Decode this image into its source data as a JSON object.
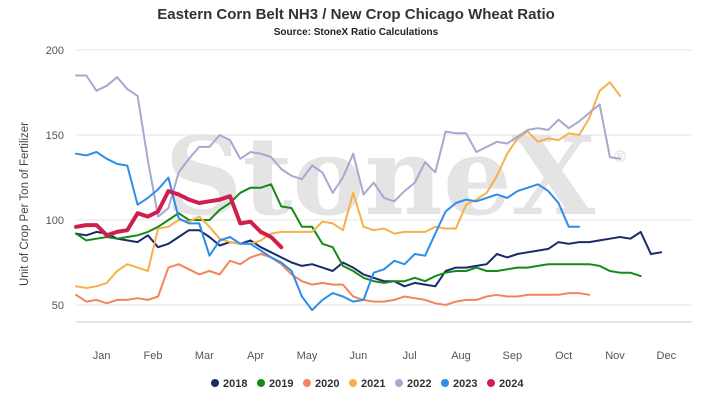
{
  "chart_data": {
    "type": "line",
    "title": "Eastern Corn Belt NH3 / New Crop Chicago Wheat Ratio",
    "subtitle": "Source: StoneX Ratio Calculations",
    "ylabel": "Unit of Crop Per Ton of Fertilizer",
    "xlabel": "",
    "ylim": [
      40,
      200
    ],
    "y_ticks": [
      50,
      100,
      150,
      200
    ],
    "xlim": [
      0,
      12
    ],
    "x_tick_labels": [
      "Jan",
      "Feb",
      "Mar",
      "Apr",
      "May",
      "Jun",
      "Jul",
      "Aug",
      "Sep",
      "Oct",
      "Nov",
      "Dec"
    ],
    "x_tick_positions": [
      0.5,
      1.5,
      2.5,
      3.5,
      4.5,
      5.5,
      6.5,
      7.5,
      8.5,
      9.5,
      10.5,
      11.5
    ],
    "grid": "horizontal",
    "legend": "bottom",
    "watermark": "StoneX",
    "series": [
      {
        "name": "2018",
        "color": "#1a2a6c",
        "width": 2,
        "x": [
          0,
          0.2,
          0.4,
          0.6,
          0.8,
          1,
          1.2,
          1.4,
          1.6,
          1.8,
          2,
          2.2,
          2.4,
          2.6,
          2.8,
          3,
          3.2,
          3.4,
          3.6,
          3.8,
          4,
          4.2,
          4.4,
          4.6,
          4.8,
          5,
          5.2,
          5.4,
          5.6,
          5.8,
          6,
          6.2,
          6.4,
          6.6,
          6.8,
          7,
          7.2,
          7.4,
          7.6,
          7.8,
          8,
          8.2,
          8.4,
          8.6,
          8.8,
          9,
          9.2,
          9.4,
          9.6,
          9.8,
          10,
          10.2,
          10.4,
          10.6,
          10.8,
          11,
          11.2,
          11.4,
          11.6,
          11.8,
          12
        ],
        "values": [
          92,
          91,
          93,
          92,
          89,
          88,
          87,
          91,
          84,
          86,
          90,
          94,
          94,
          90,
          85,
          87,
          86,
          88,
          84,
          81,
          78,
          75,
          73,
          74,
          72,
          70,
          75,
          72,
          68,
          66,
          64,
          64,
          61,
          63,
          62,
          61,
          70,
          72,
          72,
          73,
          74,
          80,
          78,
          80,
          81,
          82,
          83,
          87,
          86,
          87,
          87,
          88,
          89,
          90,
          89,
          93,
          80,
          81,
          null,
          null,
          null
        ]
      },
      {
        "name": "2019",
        "color": "#168a16",
        "width": 2,
        "x": [
          0,
          0.2,
          0.4,
          0.6,
          0.8,
          1,
          1.2,
          1.4,
          1.6,
          1.8,
          2,
          2.2,
          2.4,
          2.6,
          2.8,
          3,
          3.2,
          3.4,
          3.6,
          3.8,
          4,
          4.2,
          4.4,
          4.6,
          4.8,
          5,
          5.2,
          5.4,
          5.6,
          5.8,
          6,
          6.2,
          6.4,
          6.6,
          6.8,
          7,
          7.2,
          7.4,
          7.6,
          7.8,
          8,
          8.2,
          8.4,
          8.6,
          8.8,
          9,
          9.2,
          9.4,
          9.6,
          9.8,
          10,
          10.2,
          10.4,
          10.6,
          10.8,
          11,
          11.2,
          11.4,
          11.6,
          11.8,
          12
        ],
        "values": [
          92,
          88,
          89,
          90,
          89,
          90,
          91,
          93,
          96,
          100,
          104,
          100,
          100,
          100,
          106,
          110,
          116,
          119,
          119,
          121,
          108,
          107,
          96,
          96,
          86,
          84,
          73,
          70,
          66,
          64,
          63,
          64,
          64,
          66,
          64,
          67,
          69,
          70,
          70,
          72,
          70,
          70,
          71,
          72,
          72,
          73,
          74,
          74,
          74,
          74,
          74,
          73,
          70,
          69,
          69,
          67,
          null,
          null,
          null,
          null,
          null
        ]
      },
      {
        "name": "2020",
        "color": "#f2865a",
        "width": 2,
        "x": [
          0,
          0.2,
          0.4,
          0.6,
          0.8,
          1,
          1.2,
          1.4,
          1.6,
          1.8,
          2,
          2.2,
          2.4,
          2.6,
          2.8,
          3,
          3.2,
          3.4,
          3.6,
          3.8,
          4,
          4.2,
          4.4,
          4.6,
          4.8,
          5,
          5.2,
          5.4,
          5.6,
          5.8,
          6,
          6.2,
          6.4,
          6.6,
          6.8,
          7,
          7.2,
          7.4,
          7.6,
          7.8,
          8,
          8.2,
          8.4,
          8.6,
          8.8,
          9,
          9.2,
          9.4,
          9.6,
          9.8,
          10,
          10.2,
          10.4,
          10.6,
          10.8,
          11,
          11.2,
          11.4,
          11.6,
          11.8,
          12
        ],
        "values": [
          56,
          52,
          53,
          51,
          53,
          53,
          54,
          53,
          55,
          72,
          74,
          71,
          68,
          70,
          68,
          76,
          74,
          78,
          80,
          78,
          74,
          68,
          64,
          62,
          63,
          62,
          62,
          55,
          53,
          52,
          52,
          53,
          55,
          54,
          53,
          51,
          50,
          52,
          53,
          53,
          55,
          56,
          55,
          55,
          56,
          56,
          56,
          56,
          57,
          57,
          56,
          null,
          null,
          null,
          null,
          null,
          null,
          null,
          null,
          null,
          null
        ]
      },
      {
        "name": "2021",
        "color": "#f5b14c",
        "width": 2,
        "x": [
          0,
          0.2,
          0.4,
          0.6,
          0.8,
          1,
          1.2,
          1.4,
          1.6,
          1.8,
          2,
          2.2,
          2.4,
          2.6,
          2.8,
          3,
          3.2,
          3.4,
          3.6,
          3.8,
          4,
          4.2,
          4.4,
          4.6,
          4.8,
          5,
          5.2,
          5.4,
          5.6,
          5.8,
          6,
          6.2,
          6.4,
          6.6,
          6.8,
          7,
          7.2,
          7.4,
          7.6,
          7.8,
          8,
          8.2,
          8.4,
          8.6,
          8.8,
          9,
          9.2,
          9.4,
          9.6,
          9.8,
          10,
          10.2,
          10.4,
          10.6,
          10.8,
          11,
          11.2,
          11.4,
          11.6,
          11.8,
          12
        ],
        "values": [
          61,
          60,
          61,
          63,
          70,
          74,
          72,
          70,
          95,
          96,
          100,
          99,
          102,
          96,
          89,
          87,
          86,
          86,
          88,
          92,
          93,
          93,
          93,
          93,
          99,
          98,
          94,
          116,
          96,
          94,
          95,
          92,
          93,
          93,
          93,
          96,
          95,
          95,
          109,
          112,
          116,
          126,
          139,
          148,
          152,
          146,
          148,
          147,
          151,
          150,
          160,
          176,
          181,
          173,
          null,
          null,
          null,
          null,
          null,
          null,
          null
        ]
      },
      {
        "name": "2022",
        "color": "#a7a8d2",
        "width": 2,
        "x": [
          0,
          0.2,
          0.4,
          0.6,
          0.8,
          1,
          1.2,
          1.4,
          1.6,
          1.8,
          2,
          2.2,
          2.4,
          2.6,
          2.8,
          3,
          3.2,
          3.4,
          3.6,
          3.8,
          4,
          4.2,
          4.4,
          4.6,
          4.8,
          5,
          5.2,
          5.4,
          5.6,
          5.8,
          6,
          6.2,
          6.4,
          6.6,
          6.8,
          7,
          7.2,
          7.4,
          7.6,
          7.8,
          8,
          8.2,
          8.4,
          8.6,
          8.8,
          9,
          9.2,
          9.4,
          9.6,
          9.8,
          10,
          10.2,
          10.4,
          10.6,
          10.8,
          11,
          11.2,
          11.4,
          11.6,
          11.8,
          12
        ],
        "values": [
          185,
          185,
          176,
          179,
          184,
          177,
          173,
          135,
          102,
          107,
          128,
          136,
          143,
          143,
          150,
          147,
          136,
          140,
          139,
          137,
          130,
          126,
          124,
          132,
          128,
          116,
          125,
          139,
          115,
          122,
          113,
          111,
          117,
          122,
          134,
          128,
          152,
          151,
          151,
          140,
          143,
          146,
          145,
          149,
          153,
          154,
          153,
          159,
          154,
          158,
          163,
          168,
          137,
          136,
          null,
          null,
          null,
          null,
          null,
          null,
          null
        ]
      },
      {
        "name": "2023",
        "color": "#2e8de8",
        "width": 2,
        "x": [
          0,
          0.2,
          0.4,
          0.6,
          0.8,
          1,
          1.2,
          1.4,
          1.6,
          1.8,
          2,
          2.2,
          2.4,
          2.6,
          2.8,
          3,
          3.2,
          3.4,
          3.6,
          3.8,
          4,
          4.2,
          4.4,
          4.6,
          4.8,
          5,
          5.2,
          5.4,
          5.6,
          5.8,
          6,
          6.2,
          6.4,
          6.6,
          6.8,
          7,
          7.2,
          7.4,
          7.6,
          7.8,
          8,
          8.2,
          8.4,
          8.6,
          8.8,
          9,
          9.2,
          9.4,
          9.6,
          9.8,
          10,
          10.2,
          10.4,
          10.6,
          10.8,
          11,
          11.2,
          11.4,
          11.6,
          11.8,
          12
        ],
        "values": [
          139,
          138,
          140,
          136,
          133,
          132,
          109,
          113,
          118,
          125,
          101,
          98,
          98,
          79,
          88,
          90,
          86,
          86,
          82,
          78,
          75,
          70,
          55,
          47,
          53,
          57,
          55,
          52,
          53,
          69,
          71,
          76,
          74,
          80,
          79,
          92,
          105,
          110,
          112,
          111,
          113,
          115,
          113,
          117,
          119,
          121,
          117,
          110,
          96,
          96,
          null,
          null,
          null,
          null,
          null,
          null,
          null,
          null,
          null,
          null,
          null
        ]
      },
      {
        "name": "2024",
        "color": "#d01e4e",
        "width": 4,
        "x": [
          0,
          0.2,
          0.4,
          0.6,
          0.8,
          1,
          1.2,
          1.4,
          1.6,
          1.8,
          2,
          2.2,
          2.4,
          2.6,
          2.8,
          3,
          3.2,
          3.4,
          3.6,
          3.8,
          4,
          4.2,
          4.4,
          4.6,
          4.8,
          5,
          5.2,
          5.4,
          5.6,
          5.8,
          6,
          6.2,
          6.4,
          6.6,
          6.8,
          7,
          7.2,
          7.4,
          7.6,
          7.8,
          8,
          8.2,
          8.4,
          8.6,
          8.8,
          9,
          9.2,
          9.4,
          9.6,
          9.8,
          10,
          10.2,
          10.4,
          10.6,
          10.8,
          11,
          11.2,
          11.4,
          11.6,
          11.8,
          12
        ],
        "values": [
          96,
          97,
          97,
          91,
          93,
          94,
          104,
          102,
          105,
          117,
          115,
          112,
          110,
          111,
          112,
          114,
          98,
          99,
          93,
          90,
          84,
          null,
          null,
          null,
          null,
          null,
          null,
          null,
          null,
          null,
          null,
          null,
          null,
          null,
          null,
          null,
          null,
          null,
          null,
          null,
          null,
          null,
          null,
          null,
          null,
          null,
          null,
          null,
          null,
          null,
          null,
          null,
          null,
          null,
          null,
          null,
          null,
          null,
          null,
          null,
          null
        ]
      }
    ]
  }
}
